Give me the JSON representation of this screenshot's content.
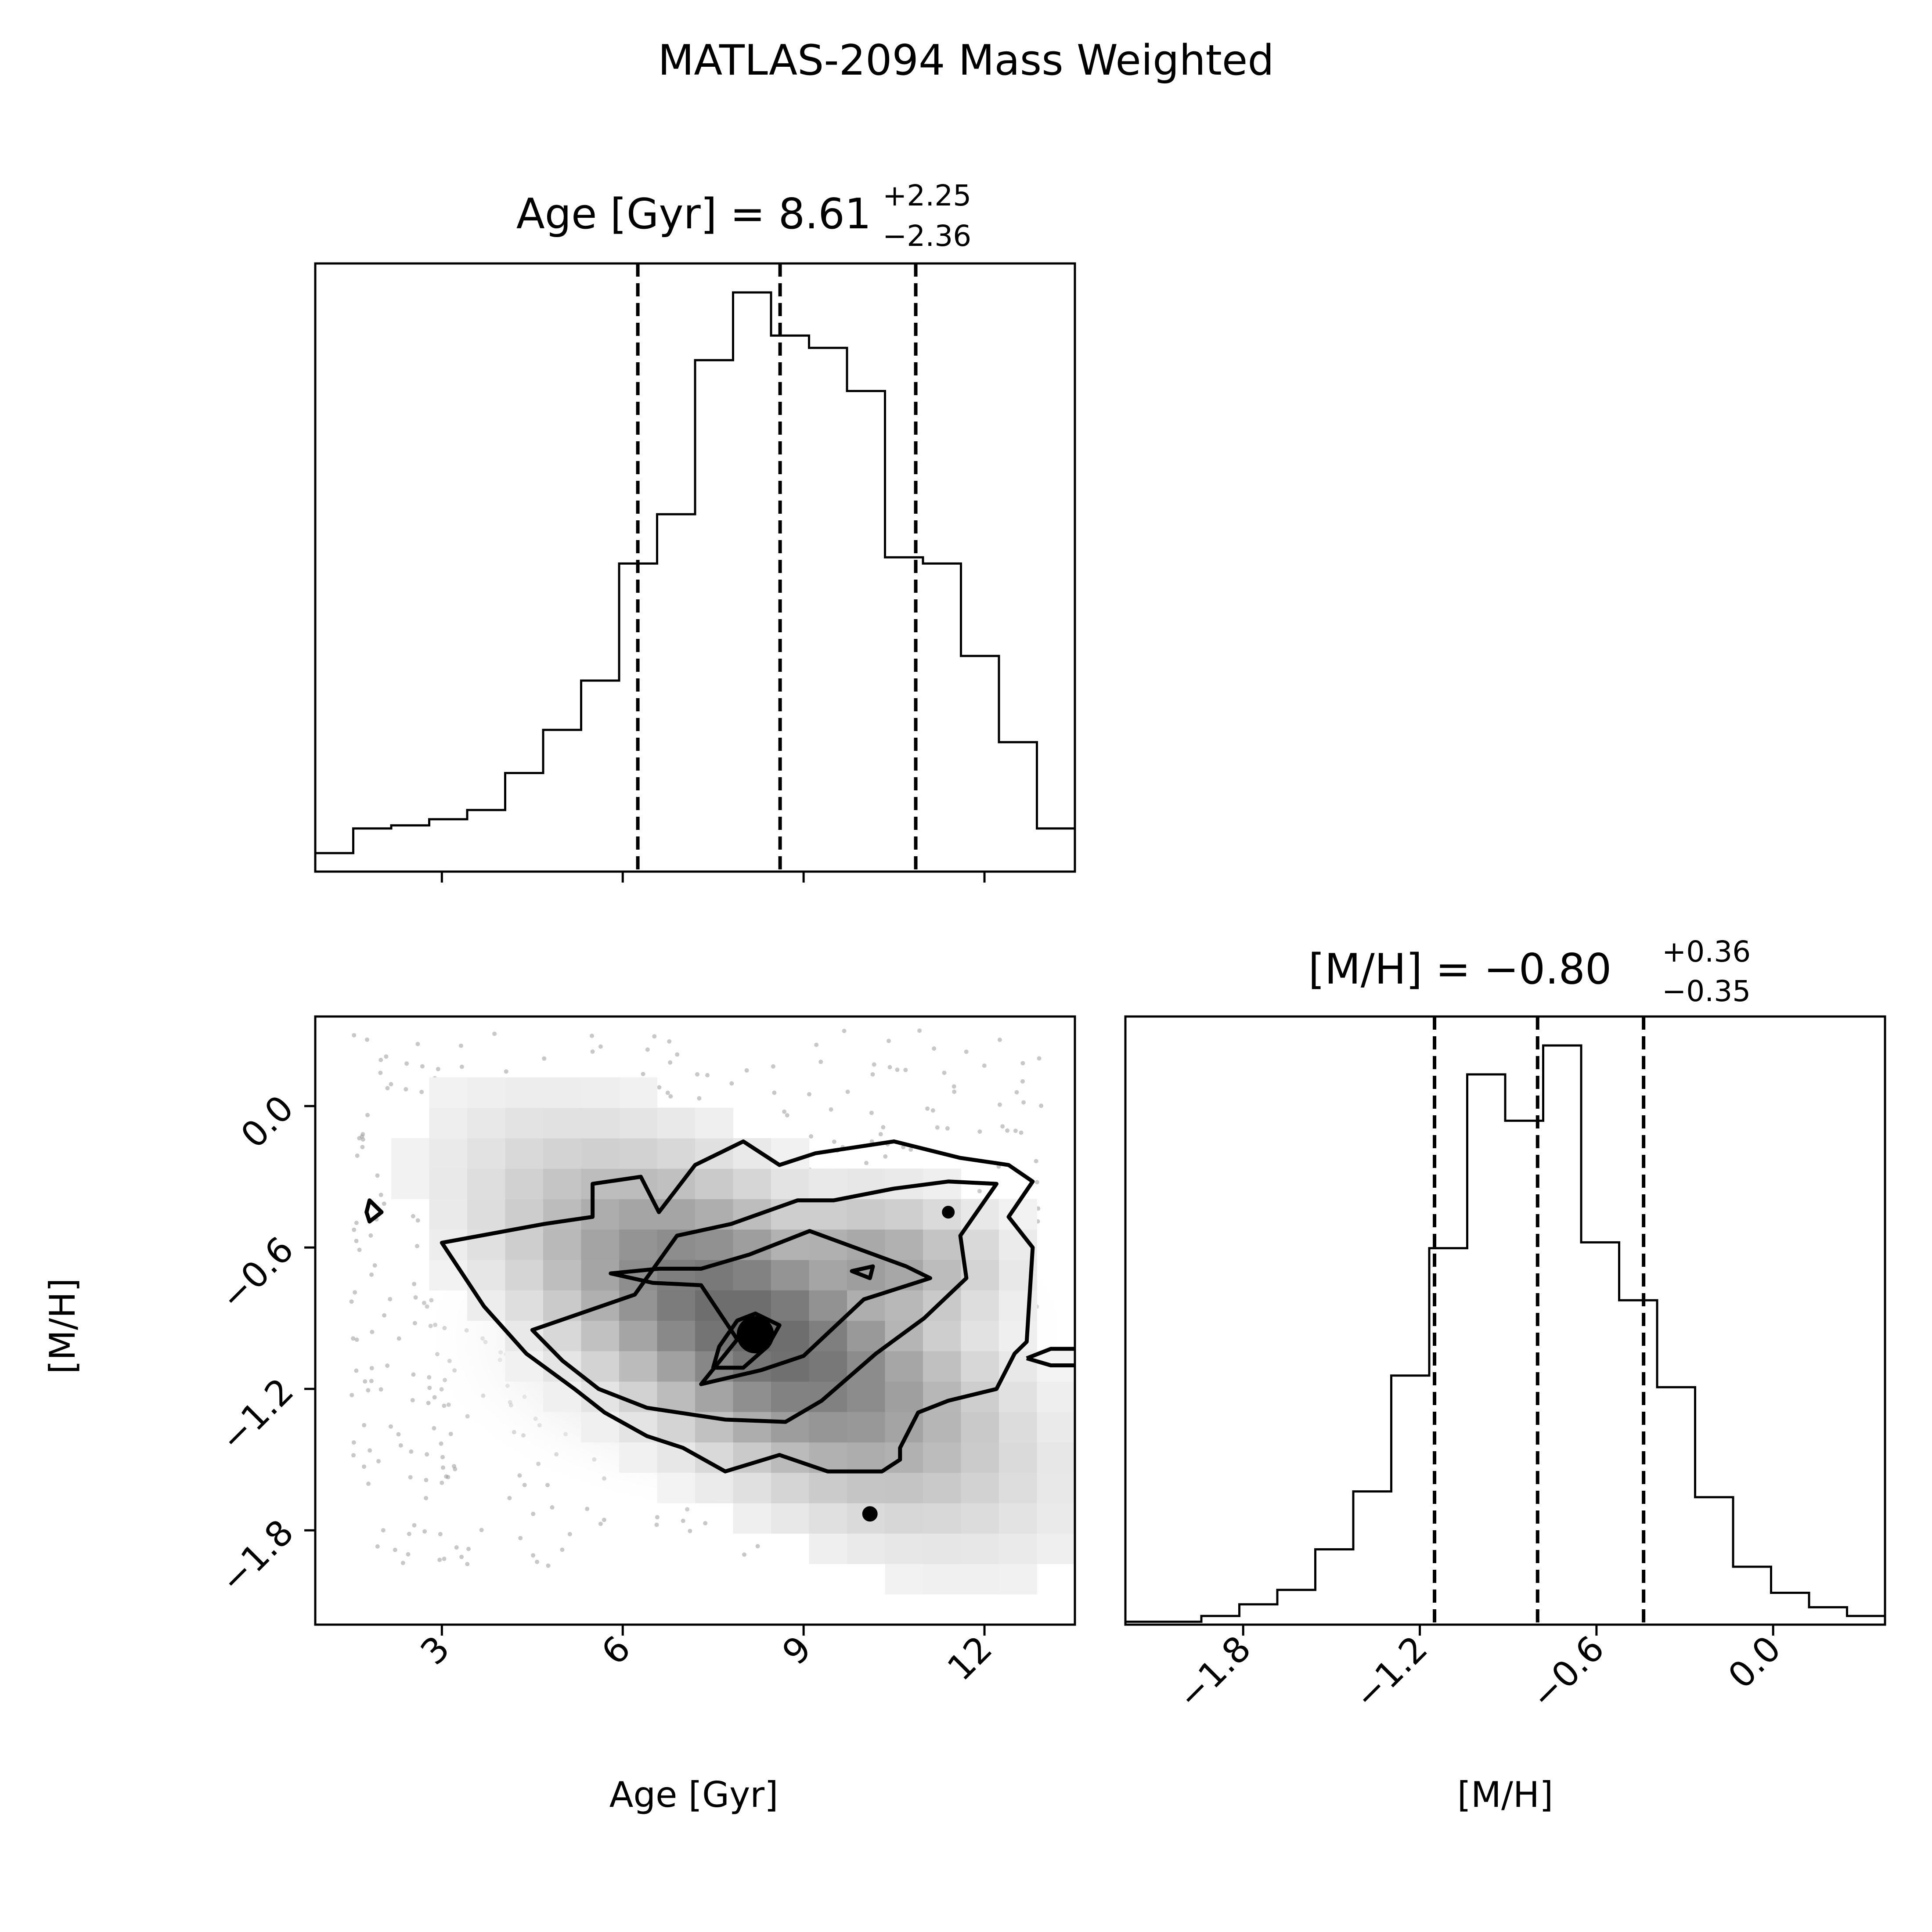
{
  "chart_data": {
    "type": "corner",
    "title": "MATLAS-2094 Mass Weighted",
    "panels": [
      {
        "id": "age-hist",
        "type": "step-histogram",
        "title_prefix": "Age [Gyr] = ",
        "median": "8.61",
        "plus": "+2.25",
        "minus": "−2.36",
        "xlim": [
          0.9,
          13.5
        ],
        "bin_edges": [
          0.9,
          1.53,
          2.16,
          2.79,
          3.42,
          4.05,
          4.68,
          5.31,
          5.94,
          6.57,
          7.2,
          7.83,
          8.46,
          9.09,
          9.72,
          10.35,
          10.98,
          11.61,
          12.24,
          12.87,
          13.5
        ],
        "counts": [
          0.03,
          0.07,
          0.075,
          0.085,
          0.1,
          0.16,
          0.23,
          0.31,
          0.5,
          0.58,
          0.83,
          0.94,
          0.87,
          0.85,
          0.78,
          0.51,
          0.5,
          0.35,
          0.21,
          0.07
        ],
        "quantiles": [
          6.25,
          8.61,
          10.86
        ],
        "xticks": [
          "3",
          "6",
          "9",
          "12"
        ],
        "xtick_values": [
          3,
          6,
          9,
          12
        ]
      },
      {
        "id": "joint",
        "type": "2d-density-contour",
        "xlabel": "Age [Gyr]",
        "ylabel": "[M/H]",
        "xlim": [
          0.9,
          13.5
        ],
        "ylim": [
          -2.2,
          0.38
        ],
        "xticks": [
          "3",
          "6",
          "9",
          "12"
        ],
        "xtick_values": [
          3,
          6,
          9,
          12
        ],
        "yticks": [
          "−1.8",
          "−1.2",
          "−0.6",
          "0.0"
        ],
        "ytick_values": [
          -1.8,
          -1.2,
          -0.6,
          0.0
        ],
        "density_peak": [
          8.2,
          -0.95
        ],
        "contour_levels": 4
      },
      {
        "id": "mh-hist",
        "type": "step-histogram",
        "title_prefix": "[M/H] = ",
        "median": "−0.80",
        "plus": "+0.36",
        "minus": "−0.35",
        "xlabel": "[M/H]",
        "xlim": [
          -2.2,
          0.38
        ],
        "bin_edges": [
          -2.2,
          -2.071,
          -1.942,
          -1.813,
          -1.684,
          -1.555,
          -1.426,
          -1.297,
          -1.168,
          -1.039,
          -0.91,
          -0.781,
          -0.652,
          -0.523,
          -0.394,
          -0.265,
          -0.136,
          -0.007,
          0.122,
          0.251,
          0.38
        ],
        "counts": [
          0.005,
          0.005,
          0.015,
          0.035,
          0.06,
          0.13,
          0.23,
          0.43,
          0.65,
          0.95,
          0.87,
          1.0,
          0.66,
          0.56,
          0.41,
          0.22,
          0.1,
          0.055,
          0.03,
          0.015
        ],
        "quantiles": [
          -1.15,
          -0.8,
          -0.44
        ],
        "xticks": [
          "−1.8",
          "−1.2",
          "−0.6",
          "0.0"
        ],
        "xtick_values": [
          -1.8,
          -1.2,
          -0.6,
          0.0
        ]
      }
    ]
  }
}
